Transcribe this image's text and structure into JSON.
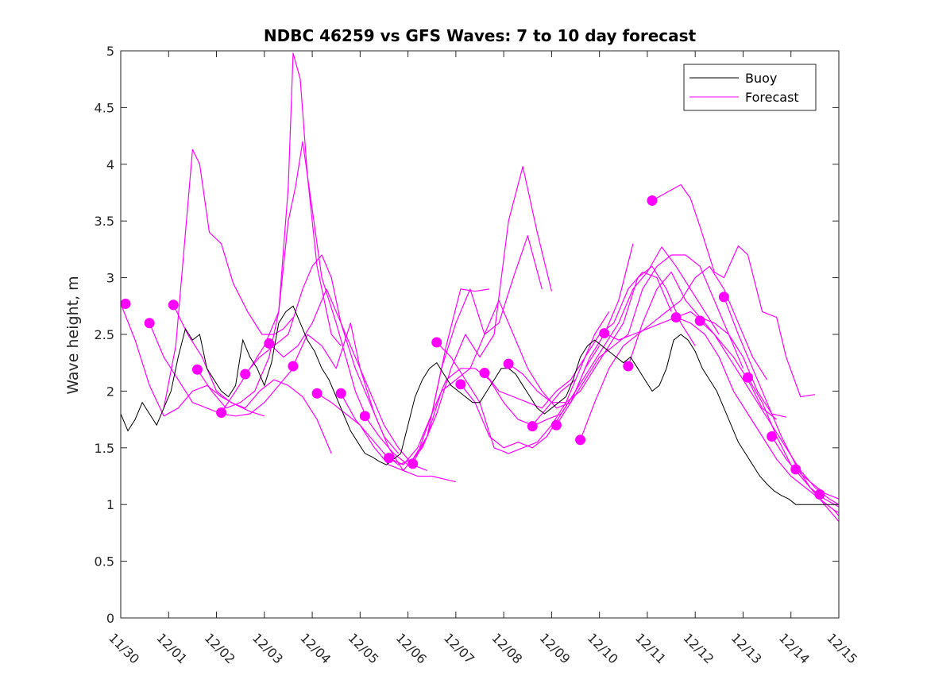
{
  "chart_data": {
    "type": "line",
    "title": "NDBC 46259 vs GFS Waves: 7 to 10 day forecast",
    "xlabel": "",
    "ylabel": "Wave height, m",
    "xlim": [
      0,
      15
    ],
    "ylim": [
      0,
      5
    ],
    "x_tick_labels": [
      "11/30",
      "12/01",
      "12/02",
      "12/03",
      "12/04",
      "12/05",
      "12/06",
      "12/07",
      "12/08",
      "12/09",
      "12/10",
      "12/11",
      "12/12",
      "12/13",
      "12/14",
      "12/15"
    ],
    "y_ticks": [
      0,
      0.5,
      1,
      1.5,
      2,
      2.5,
      3,
      3.5,
      4,
      4.5,
      5
    ],
    "y_tick_labels": [
      "0",
      "0.5",
      "1",
      "1.5",
      "2",
      "2.5",
      "3",
      "3.5",
      "4",
      "4.5",
      "5"
    ],
    "grid": false,
    "legend": {
      "position": "top-right",
      "entries": [
        "Buoy",
        "Forecast"
      ]
    },
    "colors": {
      "buoy": "#000000",
      "forecast": "#ff00ff",
      "axis": "#262626"
    },
    "buoy": {
      "name": "Buoy",
      "x": [
        0,
        0.15,
        0.3,
        0.45,
        0.6,
        0.75,
        0.9,
        1.05,
        1.2,
        1.35,
        1.5,
        1.65,
        1.8,
        1.95,
        2.1,
        2.25,
        2.4,
        2.55,
        2.7,
        2.85,
        3.0,
        3.15,
        3.3,
        3.45,
        3.6,
        3.75,
        3.9,
        4.05,
        4.2,
        4.35,
        4.5,
        4.65,
        4.8,
        4.95,
        5.1,
        5.25,
        5.4,
        5.55,
        5.7,
        5.85,
        6.0,
        6.15,
        6.3,
        6.45,
        6.6,
        6.75,
        6.9,
        7.05,
        7.2,
        7.35,
        7.5,
        7.65,
        7.8,
        7.95,
        8.1,
        8.25,
        8.4,
        8.55,
        8.7,
        8.85,
        9.0,
        9.15,
        9.3,
        9.45,
        9.6,
        9.75,
        9.9,
        10.05,
        10.2,
        10.35,
        10.5,
        10.65,
        10.8,
        10.95,
        11.1,
        11.25,
        11.4,
        11.55,
        11.7,
        11.85,
        12.0,
        12.15,
        12.3,
        12.45,
        12.6,
        12.75,
        12.9,
        13.05,
        13.2,
        13.35,
        13.5,
        13.65,
        13.8,
        13.95,
        14.1,
        14.25,
        14.4,
        14.55,
        14.7,
        14.85,
        15.0
      ],
      "y": [
        1.8,
        1.65,
        1.75,
        1.9,
        1.8,
        1.7,
        1.85,
        2.0,
        2.3,
        2.55,
        2.45,
        2.5,
        2.2,
        2.1,
        2.0,
        1.95,
        2.05,
        2.45,
        2.3,
        2.2,
        2.05,
        2.25,
        2.6,
        2.7,
        2.75,
        2.6,
        2.45,
        2.35,
        2.2,
        2.1,
        1.95,
        1.8,
        1.65,
        1.55,
        1.45,
        1.42,
        1.38,
        1.35,
        1.4,
        1.45,
        1.7,
        1.95,
        2.1,
        2.2,
        2.25,
        2.15,
        2.05,
        2.0,
        1.95,
        1.9,
        1.9,
        2.0,
        2.1,
        2.2,
        2.2,
        2.15,
        2.05,
        1.95,
        1.85,
        1.8,
        1.85,
        1.9,
        1.95,
        2.1,
        2.3,
        2.4,
        2.45,
        2.4,
        2.35,
        2.3,
        2.25,
        2.3,
        2.2,
        2.1,
        2.0,
        2.05,
        2.2,
        2.45,
        2.5,
        2.45,
        2.35,
        2.2,
        2.1,
        2.0,
        1.85,
        1.7,
        1.55,
        1.45,
        1.35,
        1.25,
        1.18,
        1.12,
        1.08,
        1.05,
        1.0,
        1.0,
        1.0,
        1.0,
        1.0,
        1.0,
        1.0
      ]
    },
    "forecast_lines": [
      {
        "name": "Forecast run 1",
        "x": [
          0,
          0.3,
          0.6,
          0.9,
          1.2,
          1.5,
          1.8,
          2.1,
          2.4,
          2.7,
          3.0
        ],
        "y": [
          2.77,
          2.45,
          2.05,
          1.78,
          1.85,
          2.0,
          2.05,
          1.95,
          1.88,
          1.82,
          1.78
        ]
      },
      {
        "name": "Forecast run 2",
        "x": [
          0.6,
          0.9,
          1.2,
          1.5,
          1.8,
          2.1,
          2.4,
          2.7,
          3.0,
          3.3,
          3.6
        ],
        "y": [
          2.6,
          2.3,
          2.1,
          1.9,
          1.85,
          1.8,
          1.78,
          1.8,
          1.9,
          2.05,
          2.2
        ]
      },
      {
        "name": "Forecast run 3",
        "x": [
          0.9,
          1.15,
          1.5,
          1.65,
          1.85,
          2.1,
          2.35,
          2.65,
          2.95,
          3.2,
          3.4,
          3.6
        ],
        "y": [
          1.85,
          2.4,
          4.13,
          4.0,
          3.4,
          3.3,
          2.95,
          2.7,
          2.5,
          2.5,
          2.55,
          2.65
        ]
      },
      {
        "name": "Forecast run 4",
        "x": [
          1.1,
          1.4,
          1.7,
          2.0,
          2.3,
          2.6,
          2.9,
          3.2,
          3.5,
          3.8,
          4.1,
          4.4
        ],
        "y": [
          2.76,
          2.5,
          2.3,
          2.0,
          1.9,
          1.85,
          2.0,
          2.1,
          2.05,
          1.95,
          1.75,
          1.45
        ]
      },
      {
        "name": "Forecast run 5",
        "x": [
          1.6,
          1.9,
          2.2,
          2.5,
          2.8,
          3.1,
          3.3,
          3.5,
          3.6,
          3.75,
          3.9,
          4.1,
          4.4,
          4.6
        ],
        "y": [
          2.19,
          2.0,
          1.85,
          1.9,
          2.0,
          2.3,
          2.7,
          3.8,
          4.98,
          4.75,
          3.9,
          3.1,
          2.5,
          2.4
        ]
      },
      {
        "name": "Forecast run 6",
        "x": [
          2.1,
          2.4,
          2.7,
          3.0,
          3.3,
          3.5,
          3.65,
          3.8,
          4.0,
          4.2,
          4.5,
          4.7,
          4.9,
          5.1
        ],
        "y": [
          1.81,
          2.0,
          2.2,
          2.4,
          2.7,
          3.5,
          3.8,
          4.2,
          3.6,
          3.0,
          2.6,
          2.3,
          2.0,
          1.8
        ]
      },
      {
        "name": "Forecast run 7",
        "x": [
          2.6,
          2.9,
          3.2,
          3.5,
          3.8,
          4.0,
          4.2,
          4.4,
          4.6,
          4.9,
          5.2,
          5.5,
          5.8
        ],
        "y": [
          2.15,
          2.3,
          2.4,
          2.5,
          2.9,
          3.1,
          3.2,
          3.0,
          2.6,
          2.2,
          1.9,
          1.6,
          1.45
        ]
      },
      {
        "name": "Forecast run 8",
        "x": [
          3.1,
          3.4,
          3.7,
          4.0,
          4.3,
          4.6,
          4.9,
          5.2,
          5.5,
          5.8,
          6.1,
          6.4
        ],
        "y": [
          2.42,
          2.3,
          2.4,
          2.6,
          2.9,
          2.6,
          2.3,
          2.0,
          1.7,
          1.5,
          1.35,
          1.3
        ]
      },
      {
        "name": "Forecast run 9",
        "x": [
          3.6,
          3.9,
          4.2,
          4.5,
          4.8,
          5.0,
          5.3,
          5.6,
          5.9,
          6.2,
          6.5,
          6.8,
          7.0
        ],
        "y": [
          2.22,
          2.5,
          2.4,
          2.2,
          2.6,
          2.2,
          1.8,
          1.5,
          1.3,
          1.25,
          1.25,
          1.22,
          1.2
        ]
      },
      {
        "name": "Forecast run 10",
        "x": [
          4.1,
          4.4,
          4.7,
          5.0,
          5.3,
          5.6,
          5.9,
          6.2,
          6.5,
          6.8,
          7.1,
          7.4,
          7.7
        ],
        "y": [
          1.98,
          1.9,
          1.8,
          1.7,
          1.5,
          1.35,
          1.3,
          1.45,
          1.8,
          2.4,
          2.9,
          2.88,
          2.9
        ]
      },
      {
        "name": "Forecast run 11",
        "x": [
          4.6,
          4.9,
          5.2,
          5.5,
          5.8,
          6.1,
          6.4,
          6.7,
          7.0,
          7.3,
          7.6,
          7.9,
          8.2,
          8.5,
          8.8
        ],
        "y": [
          1.98,
          1.75,
          1.6,
          1.45,
          1.35,
          1.4,
          1.6,
          2.2,
          2.6,
          2.9,
          2.5,
          2.6,
          3.0,
          3.37,
          2.9
        ]
      },
      {
        "name": "Forecast run 12",
        "x": [
          5.1,
          5.4,
          5.7,
          6.0,
          6.3,
          6.6,
          6.9,
          7.2,
          7.5,
          7.8,
          8.1,
          8.4,
          8.7,
          9.0
        ],
        "y": [
          1.78,
          1.6,
          1.45,
          1.35,
          1.5,
          1.8,
          2.2,
          2.5,
          2.3,
          2.5,
          3.5,
          3.98,
          3.4,
          2.88
        ]
      },
      {
        "name": "Forecast run 13",
        "x": [
          5.6,
          5.9,
          6.2,
          6.5,
          6.8,
          7.1,
          7.4,
          7.7,
          8.0,
          8.3,
          8.6,
          8.9,
          9.2,
          9.5
        ],
        "y": [
          1.41,
          1.35,
          1.5,
          1.8,
          2.1,
          2.2,
          2.2,
          2.1,
          1.9,
          1.75,
          1.7,
          1.85,
          2.0,
          2.1
        ]
      },
      {
        "name": "Forecast run 14",
        "x": [
          6.1,
          6.4,
          6.7,
          7.0,
          7.3,
          7.6,
          7.9,
          8.2,
          8.5,
          8.8,
          9.1,
          9.4,
          9.7,
          10.0
        ],
        "y": [
          1.36,
          1.6,
          2.0,
          2.1,
          2.2,
          2.5,
          2.8,
          2.5,
          2.2,
          2.0,
          1.85,
          1.9,
          2.2,
          2.4
        ]
      },
      {
        "name": "Forecast run 15",
        "x": [
          6.6,
          6.9,
          7.2,
          7.5,
          7.8,
          8.1,
          8.4,
          8.7,
          9.0,
          9.3,
          9.6,
          9.9,
          10.2
        ],
        "y": [
          2.43,
          2.3,
          2.1,
          1.9,
          1.5,
          1.45,
          1.5,
          1.55,
          1.7,
          1.9,
          2.2,
          2.5,
          2.7
        ]
      },
      {
        "name": "Forecast run 16",
        "x": [
          7.1,
          7.4,
          7.7,
          8.0,
          8.3,
          8.6,
          8.9,
          9.2,
          9.5,
          9.8,
          10.1,
          10.4,
          10.7
        ],
        "y": [
          2.06,
          1.9,
          1.6,
          1.5,
          1.55,
          1.5,
          1.6,
          1.8,
          2.0,
          2.3,
          2.5,
          2.8,
          3.3
        ]
      },
      {
        "name": "Forecast run 17",
        "x": [
          7.6,
          7.9,
          8.2,
          8.5,
          8.8,
          9.1,
          9.4,
          9.7,
          10.0,
          10.3,
          10.6,
          10.9,
          11.2,
          11.5
        ],
        "y": [
          2.16,
          2.0,
          1.95,
          1.9,
          1.85,
          2.0,
          2.1,
          2.3,
          2.5,
          2.6,
          2.9,
          3.05,
          3.0,
          2.7
        ]
      },
      {
        "name": "Forecast run 18",
        "x": [
          8.1,
          8.4,
          8.7,
          9.0,
          9.3,
          9.6,
          9.9,
          10.2,
          10.5,
          10.8,
          11.1,
          11.4,
          11.7,
          12.0
        ],
        "y": [
          2.24,
          2.15,
          2.0,
          1.9,
          1.9,
          2.0,
          2.2,
          2.4,
          2.6,
          3.0,
          3.1,
          2.9,
          2.6,
          2.4
        ]
      },
      {
        "name": "Forecast run 19",
        "x": [
          8.6,
          8.9,
          9.2,
          9.5,
          9.8,
          10.1,
          10.4,
          10.7,
          11.0,
          11.3,
          11.6,
          11.9,
          12.2,
          12.5
        ],
        "y": [
          1.69,
          1.75,
          1.8,
          2.0,
          2.2,
          2.4,
          2.6,
          2.9,
          3.05,
          3.27,
          3.1,
          2.9,
          2.7,
          2.5
        ]
      },
      {
        "name": "Forecast run 20",
        "x": [
          9.1,
          9.4,
          9.7,
          10.0,
          10.3,
          10.6,
          10.9,
          11.2,
          11.5,
          11.8,
          12.1,
          12.4,
          12.7,
          13.0
        ],
        "y": [
          1.7,
          1.9,
          2.1,
          2.3,
          2.4,
          2.5,
          2.9,
          3.1,
          3.2,
          3.2,
          3.1,
          2.8,
          2.5,
          2.2
        ]
      },
      {
        "name": "Forecast run 21",
        "x": [
          9.6,
          9.9,
          10.2,
          10.5,
          10.8,
          11.1,
          11.4,
          11.7,
          12.0,
          12.3,
          12.6,
          12.9,
          13.2,
          13.5
        ],
        "y": [
          1.57,
          1.9,
          2.2,
          2.4,
          2.5,
          2.6,
          2.7,
          2.8,
          3.0,
          3.1,
          2.9,
          2.6,
          2.3,
          2.1
        ]
      },
      {
        "name": "Forecast run 22",
        "x": [
          10.1,
          10.4,
          10.7,
          11.0,
          11.3,
          11.6,
          11.9,
          12.2,
          12.5,
          12.8,
          13.1,
          13.4,
          13.7
        ],
        "y": [
          2.51,
          2.45,
          2.5,
          2.55,
          2.6,
          2.65,
          2.7,
          2.6,
          2.45,
          2.3,
          2.1,
          1.85,
          1.75
        ]
      },
      {
        "name": "Forecast run 23",
        "x": [
          10.6,
          10.9,
          11.2,
          11.5,
          11.8,
          12.1,
          12.4,
          12.7,
          13.0,
          13.3,
          13.6,
          13.9
        ],
        "y": [
          2.22,
          2.6,
          2.9,
          3.05,
          2.8,
          2.65,
          2.6,
          2.5,
          2.3,
          2.0,
          1.8,
          1.77
        ]
      },
      {
        "name": "Forecast run 24",
        "x": [
          11.1,
          11.4,
          11.7,
          11.9,
          12.1,
          12.4,
          12.6,
          12.9,
          13.1,
          13.4,
          13.7,
          13.9,
          14.2,
          14.5
        ],
        "y": [
          3.68,
          3.75,
          3.82,
          3.7,
          3.45,
          3.05,
          3.0,
          3.28,
          3.2,
          2.7,
          2.65,
          2.3,
          1.95,
          1.97
        ]
      },
      {
        "name": "Forecast run 25",
        "x": [
          11.6,
          11.9,
          12.2,
          12.5,
          12.8,
          13.1,
          13.4,
          13.7,
          14.0,
          14.3,
          14.6,
          14.9,
          15.0
        ],
        "y": [
          2.65,
          2.6,
          2.5,
          2.3,
          2.0,
          1.8,
          1.6,
          1.4,
          1.25,
          1.15,
          1.05,
          0.95,
          0.93
        ]
      },
      {
        "name": "Forecast run 26",
        "x": [
          12.1,
          12.4,
          12.7,
          13.0,
          13.3,
          13.6,
          13.9,
          14.2,
          14.5,
          14.8,
          15.0
        ],
        "y": [
          2.62,
          2.5,
          2.3,
          2.1,
          1.9,
          1.7,
          1.5,
          1.3,
          1.15,
          1.05,
          1.0
        ]
      },
      {
        "name": "Forecast run 27",
        "x": [
          12.6,
          12.9,
          13.2,
          13.5,
          13.8,
          14.1,
          14.4,
          14.7,
          15.0
        ],
        "y": [
          2.83,
          2.5,
          2.2,
          1.9,
          1.6,
          1.35,
          1.15,
          1.05,
          0.98
        ]
      },
      {
        "name": "Forecast run 28",
        "x": [
          13.1,
          13.4,
          13.7,
          14.0,
          14.3,
          14.6,
          14.9,
          15.0
        ],
        "y": [
          2.12,
          1.9,
          1.6,
          1.35,
          1.2,
          1.05,
          0.95,
          0.9
        ]
      },
      {
        "name": "Forecast run 29",
        "x": [
          13.6,
          13.9,
          14.2,
          14.5,
          14.8,
          15.0
        ],
        "y": [
          1.6,
          1.4,
          1.25,
          1.1,
          0.95,
          0.85
        ]
      },
      {
        "name": "Forecast run 30",
        "x": [
          14.1,
          14.4,
          14.7,
          15.0
        ],
        "y": [
          1.31,
          1.2,
          1.1,
          1.05
        ]
      }
    ],
    "forecast_markers": {
      "name": "Forecast start points",
      "x": [
        0.1,
        0.6,
        1.1,
        1.6,
        2.1,
        2.6,
        3.1,
        3.6,
        4.1,
        4.6,
        5.1,
        5.6,
        6.1,
        6.6,
        7.1,
        7.6,
        8.1,
        8.6,
        9.1,
        9.6,
        10.1,
        10.6,
        11.1,
        11.6,
        12.1,
        12.6,
        13.1,
        13.6,
        14.1,
        14.6
      ],
      "y": [
        2.77,
        2.6,
        2.76,
        2.19,
        1.81,
        2.15,
        2.42,
        2.22,
        1.98,
        1.98,
        1.78,
        1.41,
        1.36,
        2.43,
        2.06,
        2.16,
        2.24,
        1.69,
        1.7,
        1.57,
        2.51,
        2.22,
        3.68,
        2.65,
        2.62,
        2.83,
        2.12,
        1.6,
        1.31,
        1.09
      ]
    }
  }
}
